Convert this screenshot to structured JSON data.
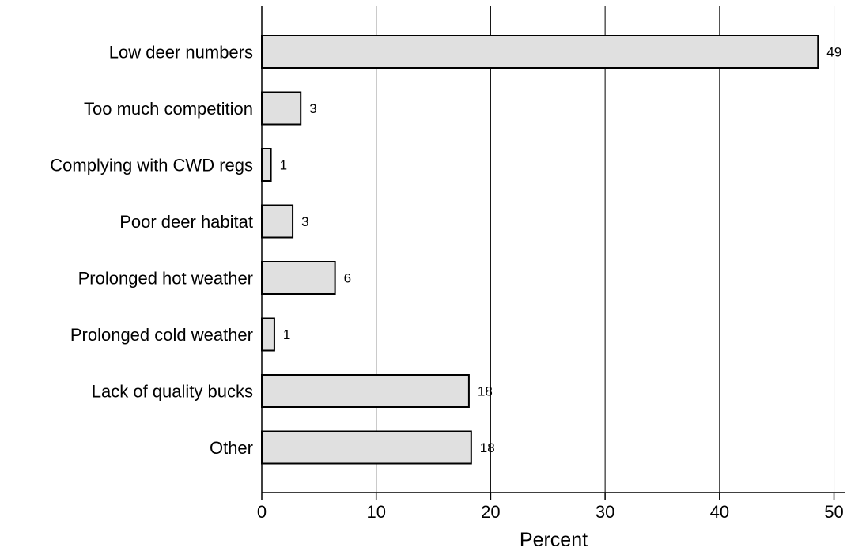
{
  "chart_data": {
    "type": "bar",
    "orientation": "horizontal",
    "categories": [
      "Low deer numbers",
      "Too much competition",
      "Complying with CWD regs",
      "Poor deer habitat",
      "Prolonged hot weather",
      "Prolonged cold weather",
      "Lack of quality bucks",
      "Other"
    ],
    "values": [
      48.6,
      3.4,
      0.8,
      2.7,
      6.4,
      1.1,
      18.1,
      18.3
    ],
    "data_labels": [
      "49",
      "3",
      "1",
      "3",
      "6",
      "1",
      "18",
      "18"
    ],
    "xlabel": "Percent",
    "xlim": [
      0,
      51
    ],
    "xticks": [
      0,
      10,
      20,
      30,
      40,
      50
    ],
    "xtick_labels": [
      "0",
      "10",
      "20",
      "30",
      "40",
      "50"
    ],
    "grid": "vertical",
    "legend": "none"
  },
  "colors": {
    "bar_fill": "#e0e0e0",
    "bar_stroke": "#000000",
    "gridline": "#000000"
  }
}
